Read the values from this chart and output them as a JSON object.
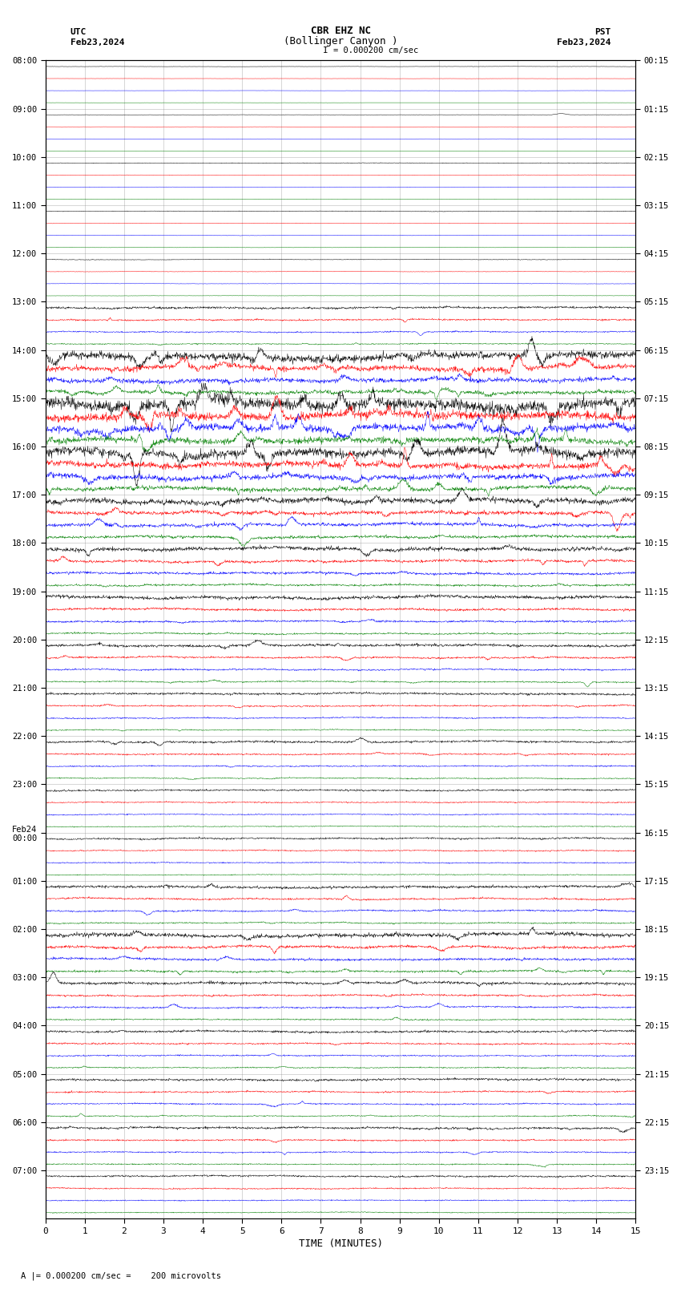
{
  "title_line1": "CBR EHZ NC",
  "title_line2": "(Bollinger Canyon )",
  "scale_label": "I = 0.000200 cm/sec",
  "footer_label": "A |= 0.000200 cm/sec =    200 microvolts",
  "utc_label": "UTC",
  "utc_date": "Feb23,2024",
  "pst_label": "PST",
  "pst_date": "Feb23,2024",
  "xlabel": "TIME (MINUTES)",
  "left_times": [
    "08:00",
    "09:00",
    "10:00",
    "11:00",
    "12:00",
    "13:00",
    "14:00",
    "15:00",
    "16:00",
    "17:00",
    "18:00",
    "19:00",
    "20:00",
    "21:00",
    "22:00",
    "23:00",
    "Feb24\n00:00",
    "01:00",
    "02:00",
    "03:00",
    "04:00",
    "05:00",
    "06:00",
    "07:00"
  ],
  "right_times": [
    "00:15",
    "01:15",
    "02:15",
    "03:15",
    "04:15",
    "05:15",
    "06:15",
    "07:15",
    "08:15",
    "09:15",
    "10:15",
    "11:15",
    "12:15",
    "13:15",
    "14:15",
    "15:15",
    "16:15",
    "17:15",
    "18:15",
    "19:15",
    "20:15",
    "21:15",
    "22:15",
    "23:15"
  ],
  "trace_colors": [
    "black",
    "red",
    "blue",
    "green"
  ],
  "n_rows": 24,
  "traces_per_row": 4,
  "minutes": 15,
  "background_color": "white",
  "grid_color": "#888888",
  "row_noise_scales": [
    0.012,
    0.012,
    0.025,
    0.025,
    0.025,
    0.1,
    0.35,
    0.55,
    0.4,
    0.25,
    0.18,
    0.15,
    0.12,
    0.1,
    0.1,
    0.08,
    0.08,
    0.12,
    0.18,
    0.12,
    0.1,
    0.1,
    0.1,
    0.08
  ],
  "color_scales": [
    1.0,
    0.7,
    0.6,
    0.5
  ],
  "samples_per_min": 120,
  "amp_scale": 0.42
}
